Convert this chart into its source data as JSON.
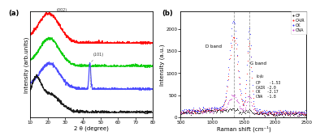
{
  "panel_a": {
    "title": "(a)",
    "xlabel": "2 θ (degree)",
    "ylabel": "Intensity (arb.units)",
    "xlim": [
      10,
      80
    ],
    "xticks": [
      10,
      20,
      30,
      40,
      50,
      60,
      70,
      80
    ],
    "colors": {
      "CNA": "#FF0000",
      "CK": "#00CC00",
      "CAIR": "#4444FF",
      "CP": "#111111"
    },
    "offsets": {
      "CNA": 0.75,
      "CK": 0.5,
      "CAIR": 0.25,
      "CP": 0.0
    },
    "bg_color": "#ffffff"
  },
  "panel_b": {
    "title": "(b)",
    "xlabel": "Raman shift (cm⁻¹)",
    "ylabel": "Intensity (a.u.)",
    "xlim": [
      500,
      2500
    ],
    "ylim": [
      0,
      2300
    ],
    "yticks": [
      0,
      500,
      1000,
      1500,
      2000
    ],
    "xticks": [
      500,
      1000,
      1500,
      2000,
      2500
    ],
    "d_band_x": 1340,
    "g_band_x": 1590,
    "colors": {
      "CP": "#111111",
      "CAIR": "#FF2222",
      "CK": "#3333FF",
      "CNA": "#CC44CC"
    },
    "d_band_label": "D band",
    "g_band_label": "G band",
    "bg_color": "#ffffff"
  }
}
